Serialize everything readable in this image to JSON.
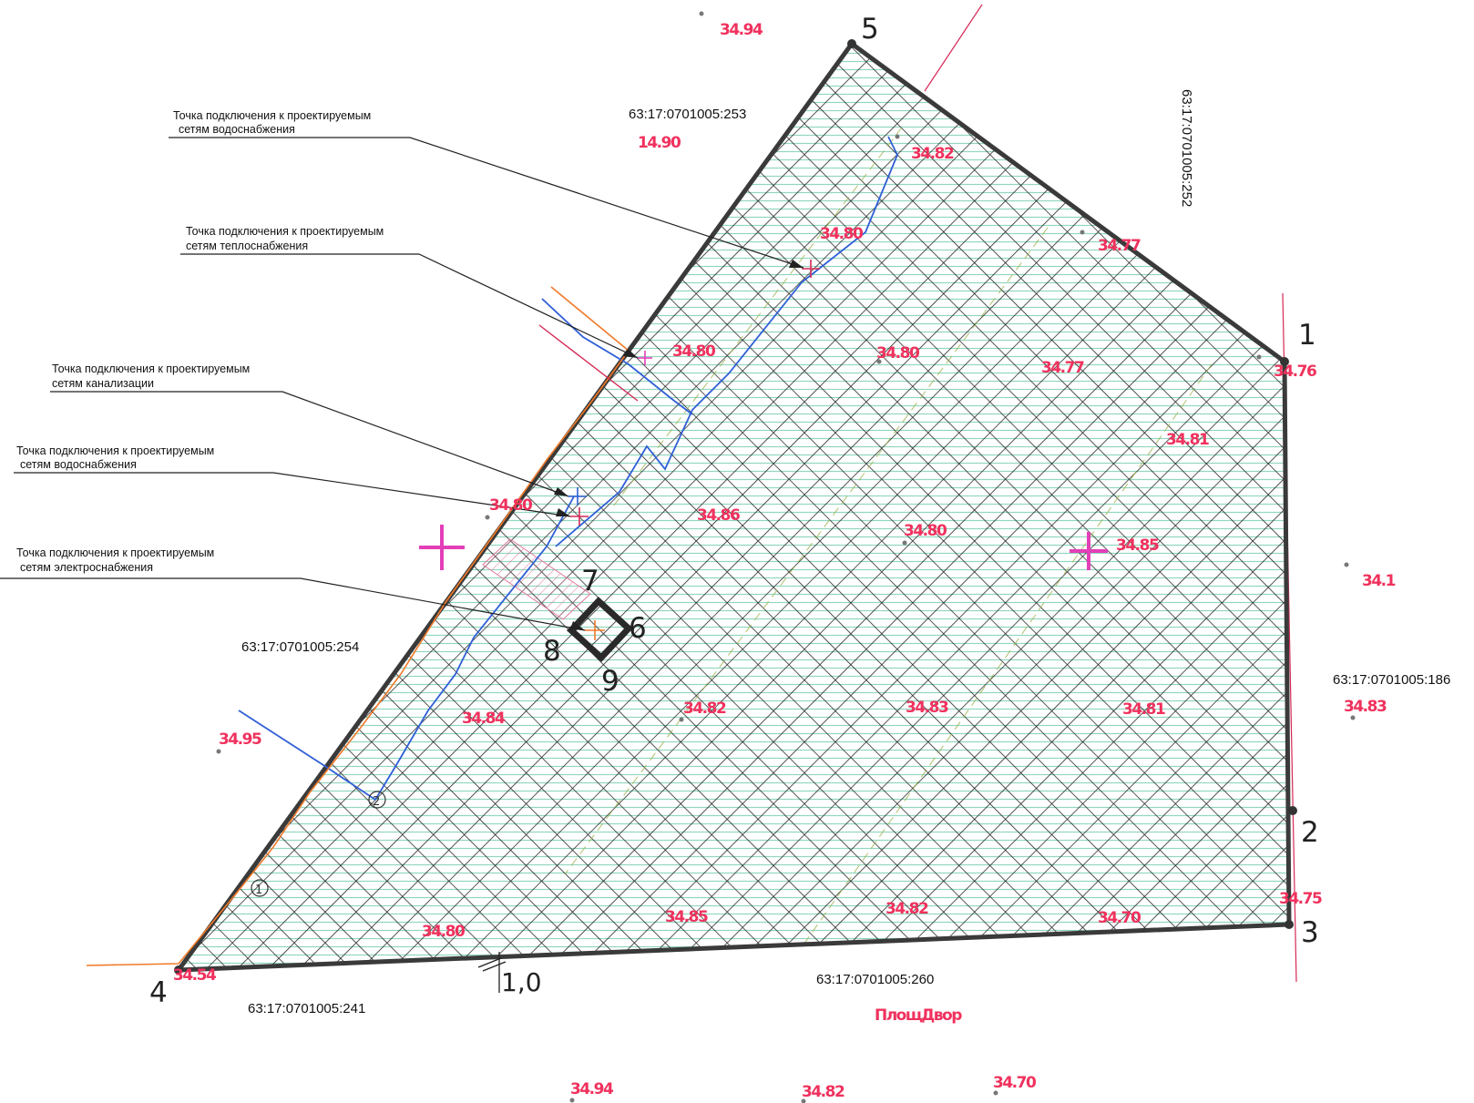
{
  "colors": {
    "boundary": "#3a3a3a",
    "hatch_dark": "#1f1f1f",
    "hatch_green": "#7fcfb4",
    "elevation_red": "#f0315d",
    "water_blue": "#2f5fd6",
    "electric_orange": "#f07a2a",
    "marker_magenta": "#e23fb8",
    "survey_red": "#d42a55"
  },
  "callouts": [
    {
      "line1": "Точка подключения к проектируемым",
      "line2": "сетям водоснабжения"
    },
    {
      "line1": "Точка подключения к проектируемым",
      "line2": "сетям теплоснабжения"
    },
    {
      "line1": "Точка подключения к проектируемым",
      "line2": "сетям канализации"
    },
    {
      "line1": "Точка подключения к проектируемым",
      "line2": "сетям водоснабжения"
    },
    {
      "line1": "Точка подключения к проектируемым",
      "line2": "сетям электроснабжения"
    }
  ],
  "parcels": [
    "63:17:0701005:253",
    "63:17:0701005:252",
    "63:17:0701005:254",
    "63:17:0701005:186",
    "63:17:0701005:241",
    "63:17:0701005:260"
  ],
  "vertices": [
    "1",
    "2",
    "3",
    "4",
    "5",
    "6",
    "7",
    "8",
    "9"
  ],
  "scale_label": "1,0",
  "network_nodes": [
    "1",
    "2"
  ],
  "elevations": [
    "34.94",
    "14.90",
    "34.82",
    "34.80",
    "34.77",
    "34.76",
    "34.80",
    "34.80",
    "34.77",
    "34.81",
    "34.86",
    "34.80",
    "34.85",
    "34.80",
    "34.1",
    "34.95",
    "34.84",
    "34.82",
    "34.83",
    "34.81",
    "34.83",
    "34.75",
    "34.80",
    "34.85",
    "34.82",
    "34.70",
    "34.54",
    "34.94",
    "34.82",
    "34.70"
  ],
  "street_label": "ПлощДвор"
}
